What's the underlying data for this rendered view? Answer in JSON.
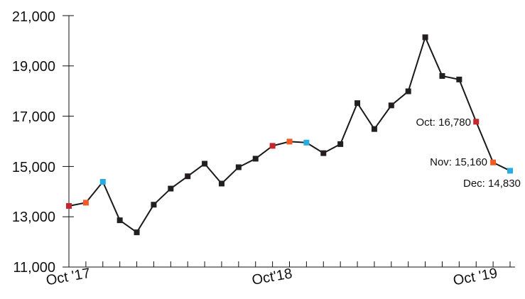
{
  "chart_data": {
    "type": "line",
    "x": [
      "Oct '17",
      "Nov '17",
      "Dec '17",
      "Jan '18",
      "Feb '18",
      "Mar '18",
      "Apr '18",
      "May '18",
      "Jun '18",
      "Jul '18",
      "Aug '18",
      "Sep '18",
      "Oct '18",
      "Nov '18",
      "Dec '18",
      "Jan '19",
      "Feb '19",
      "Mar '19",
      "Apr '19",
      "May '19",
      "Jun '19",
      "Jul '19",
      "Aug '19",
      "Sep '19",
      "Oct '19",
      "Nov '19",
      "Dec '19"
    ],
    "series": [
      {
        "values": [
          13430,
          13560,
          14390,
          12860,
          12380,
          13480,
          14120,
          14610,
          15110,
          14320,
          14970,
          15310,
          15820,
          15990,
          15950,
          15530,
          15890,
          17520,
          16490,
          17430,
          17990,
          20140,
          18600,
          18460,
          16780,
          15160,
          14830
        ]
      }
    ],
    "ylim": [
      11000,
      21000
    ],
    "yticks": [
      "11,000",
      "13,000",
      "15,000",
      "17,000",
      "19,000",
      "21,000"
    ],
    "xtick_labels": [
      "Oct '17",
      "Oct'18",
      "Oct '19"
    ],
    "annotations": [
      "Oct: 16,780",
      "Nov: 15,160",
      "Dec: 14,830"
    ],
    "grid": false,
    "colors": {
      "line": "#1a1a1a",
      "marker": "#231f20",
      "october": "#c1272d",
      "november": "#f15a24",
      "december": "#29abe2"
    }
  }
}
